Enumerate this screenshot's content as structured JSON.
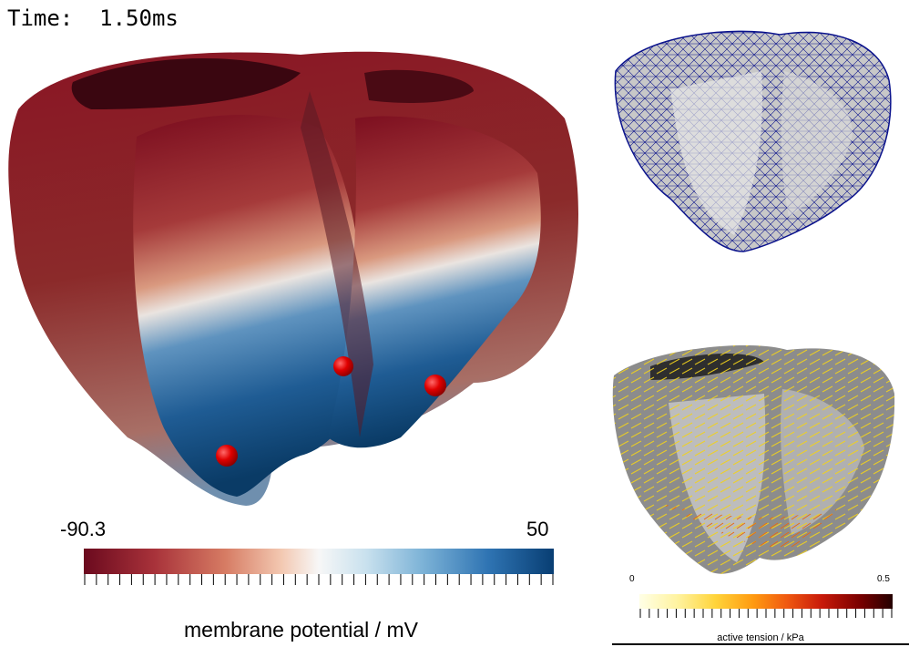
{
  "time": {
    "prefix": "Time:",
    "value": "1.50ms"
  },
  "colorbar_main": {
    "min": "-90.3",
    "max": "50",
    "title": "membrane potential / mV"
  },
  "colorbar_small": {
    "min": "0",
    "max": "0.5",
    "title": "active tension / kPa"
  },
  "colors": {
    "mesh_wire": "#0a128c",
    "electrode": "#d40000"
  }
}
